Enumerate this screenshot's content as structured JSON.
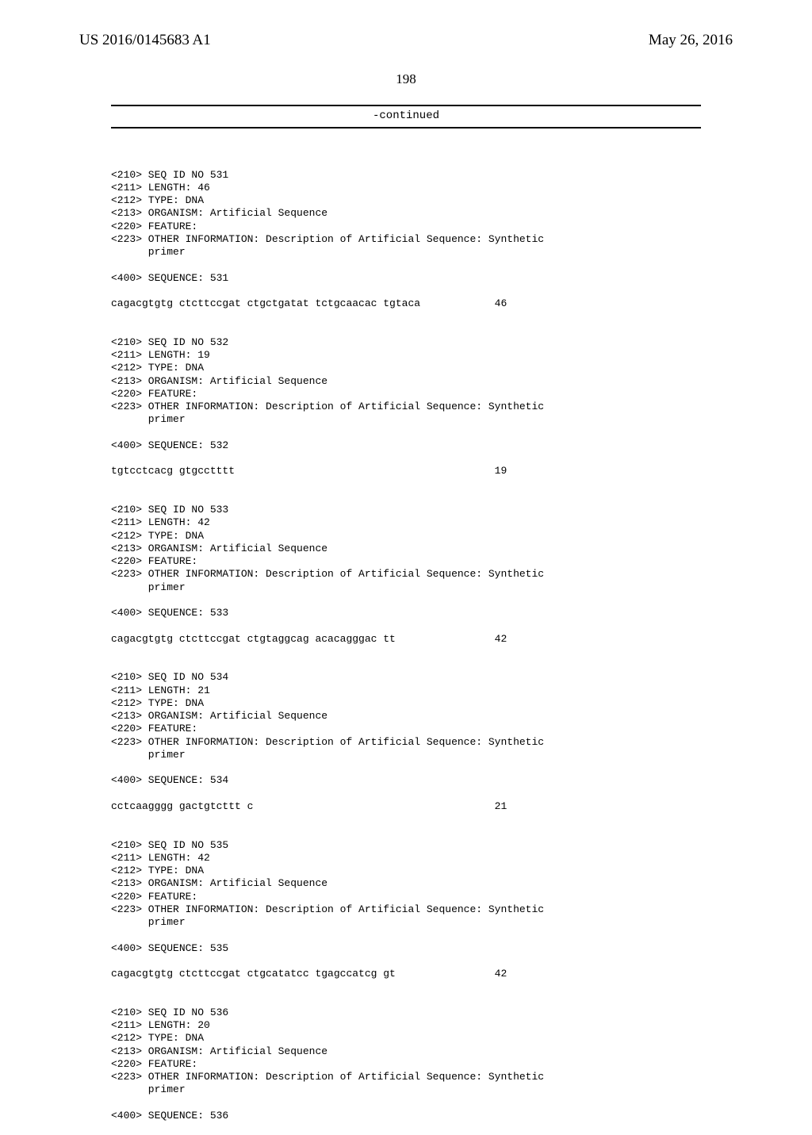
{
  "header": {
    "publication_id": "US 2016/0145683 A1",
    "publication_date": "May 26, 2016"
  },
  "page_number": "198",
  "continued_label": "-continued",
  "blocks": [
    {
      "lines": [
        "<210> SEQ ID NO 531",
        "<211> LENGTH: 46",
        "<212> TYPE: DNA",
        "<213> ORGANISM: Artificial Sequence",
        "<220> FEATURE:",
        "<223> OTHER INFORMATION: Description of Artificial Sequence: Synthetic",
        "      primer",
        "",
        "<400> SEQUENCE: 531"
      ],
      "seq": {
        "text": "cagacgtgtg ctcttccgat ctgctgatat tctgcaacac tgtaca",
        "num": "46"
      }
    },
    {
      "lines": [
        "<210> SEQ ID NO 532",
        "<211> LENGTH: 19",
        "<212> TYPE: DNA",
        "<213> ORGANISM: Artificial Sequence",
        "<220> FEATURE:",
        "<223> OTHER INFORMATION: Description of Artificial Sequence: Synthetic",
        "      primer",
        "",
        "<400> SEQUENCE: 532"
      ],
      "seq": {
        "text": "tgtcctcacg gtgcctttt",
        "num": "19"
      }
    },
    {
      "lines": [
        "<210> SEQ ID NO 533",
        "<211> LENGTH: 42",
        "<212> TYPE: DNA",
        "<213> ORGANISM: Artificial Sequence",
        "<220> FEATURE:",
        "<223> OTHER INFORMATION: Description of Artificial Sequence: Synthetic",
        "      primer",
        "",
        "<400> SEQUENCE: 533"
      ],
      "seq": {
        "text": "cagacgtgtg ctcttccgat ctgtaggcag acacagggac tt",
        "num": "42"
      }
    },
    {
      "lines": [
        "<210> SEQ ID NO 534",
        "<211> LENGTH: 21",
        "<212> TYPE: DNA",
        "<213> ORGANISM: Artificial Sequence",
        "<220> FEATURE:",
        "<223> OTHER INFORMATION: Description of Artificial Sequence: Synthetic",
        "      primer",
        "",
        "<400> SEQUENCE: 534"
      ],
      "seq": {
        "text": "cctcaagggg gactgtcttt c",
        "num": "21"
      }
    },
    {
      "lines": [
        "<210> SEQ ID NO 535",
        "<211> LENGTH: 42",
        "<212> TYPE: DNA",
        "<213> ORGANISM: Artificial Sequence",
        "<220> FEATURE:",
        "<223> OTHER INFORMATION: Description of Artificial Sequence: Synthetic",
        "      primer",
        "",
        "<400> SEQUENCE: 535"
      ],
      "seq": {
        "text": "cagacgtgtg ctcttccgat ctgcatatcc tgagccatcg gt",
        "num": "42"
      }
    },
    {
      "lines": [
        "<210> SEQ ID NO 536",
        "<211> LENGTH: 20",
        "<212> TYPE: DNA",
        "<213> ORGANISM: Artificial Sequence",
        "<220> FEATURE:",
        "<223> OTHER INFORMATION: Description of Artificial Sequence: Synthetic",
        "      primer",
        "",
        "<400> SEQUENCE: 536"
      ]
    }
  ],
  "layout": {
    "seq_col_width": 64
  }
}
